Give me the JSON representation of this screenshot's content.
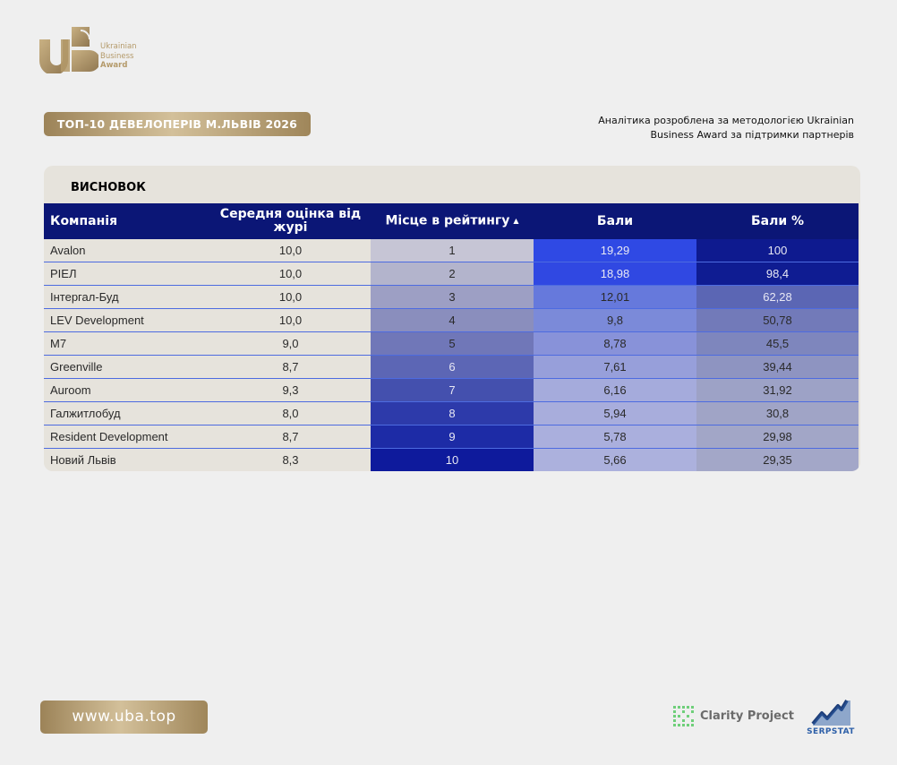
{
  "brand": {
    "logo_lines": [
      "Ukrainian",
      "Business",
      "Award"
    ],
    "logo_color": "#b49a6a"
  },
  "header": {
    "title": "ТОП-10 ДЕВЕЛОПЕРІВ М.ЛЬВІВ 2026",
    "analytics_line1": "Аналітика розроблена за методологією Ukrainian",
    "analytics_line2": "Business Award за підтримки партнерів"
  },
  "panel": {
    "title": "ВИСНОВОК",
    "columns": {
      "company": "Компанія",
      "score": "Середня оцінка від журі",
      "place": "Місце в рейтингу",
      "points": "Бали",
      "percent": "Бали %"
    },
    "sort_indicator": "ascending",
    "rows": [
      {
        "company": "Avalon",
        "score": "10,0",
        "place": "1",
        "points": "19,29",
        "percent": "100",
        "place_color": "#c6c5d5",
        "points_color": "#2f49e4",
        "percent_color": "#0e1a8f"
      },
      {
        "company": "РІЕЛ",
        "score": "10,0",
        "place": "2",
        "points": "18,98",
        "percent": "98,4",
        "place_color": "#b3b4cc",
        "points_color": "#3048e2",
        "percent_color": "#0f1c92"
      },
      {
        "company": "Інтергал-Буд",
        "score": "10,0",
        "place": "3",
        "points": "12,01",
        "percent": "62,28",
        "place_color": "#9d9fc4",
        "points_color": "#6679dc",
        "percent_color": "#5b66b4"
      },
      {
        "company": "LEV Development",
        "score": "10,0",
        "place": "4",
        "points": "9,8",
        "percent": "50,78",
        "place_color": "#8a8ebd",
        "points_color": "#7b8ad9",
        "percent_color": "#727ab9"
      },
      {
        "company": "M7",
        "score": "9,0",
        "place": "5",
        "points": "8,78",
        "percent": "45,5",
        "place_color": "#7077b8",
        "points_color": "#8892d9",
        "percent_color": "#7e86bd"
      },
      {
        "company": "Greenville",
        "score": "8,7",
        "place": "6",
        "points": "7,61",
        "percent": "39,44",
        "place_color": "#5c66b5",
        "points_color": "#979fda",
        "percent_color": "#8e94c1"
      },
      {
        "company": "Auroom",
        "score": "9,3",
        "place": "7",
        "points": "6,16",
        "percent": "31,92",
        "place_color": "#4450ae",
        "points_color": "#a5abdc",
        "percent_color": "#9da2c6"
      },
      {
        "company": "Галжитлобуд",
        "score": "8,0",
        "place": "8",
        "points": "5,94",
        "percent": "30,8",
        "place_color": "#2d3aaa",
        "points_color": "#a8addc",
        "percent_color": "#a0a4c6"
      },
      {
        "company": "Resident Development",
        "score": "8,7",
        "place": "9",
        "points": "5,78",
        "percent": "29,98",
        "place_color": "#1d2ba6",
        "points_color": "#aaafdd",
        "percent_color": "#a2a6c7"
      },
      {
        "company": "Новий Львів",
        "score": "8,3",
        "place": "10",
        "points": "5,66",
        "percent": "29,35",
        "place_color": "#0e1a9c",
        "points_color": "#acb1dd",
        "percent_color": "#a3a7c8"
      }
    ]
  },
  "footer": {
    "url": "www.uba.top",
    "partner1": "Clarity Project",
    "partner2": "SERPSTAT"
  },
  "colors": {
    "header_bg": "#0b1676",
    "panel_bg": "#e6e3dc",
    "page_bg": "#efefef",
    "gold": "#b49a6a"
  }
}
